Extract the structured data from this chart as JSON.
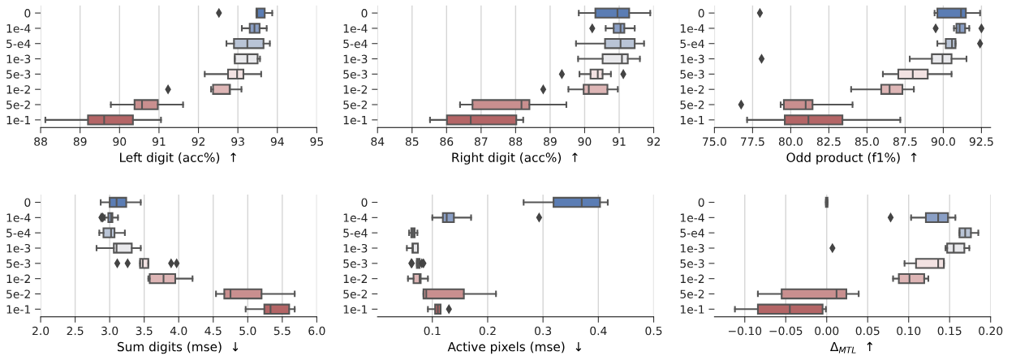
{
  "chart_data": [
    {
      "type": "box",
      "orientation": "horizontal",
      "xlabel": "Left digit (acc%)  ↑",
      "categories": [
        "0",
        "1e-4",
        "5-e4",
        "1e-3",
        "5e-3",
        "1e-2",
        "5e-2",
        "1e-1"
      ],
      "colors": [
        "#5b7db4",
        "#8a9fc5",
        "#b9c4d6",
        "#e9e9ec",
        "#f2e2e2",
        "#deb6b6",
        "#c98f8f",
        "#b46566"
      ],
      "xlim": [
        88,
        95
      ],
      "xticks": [
        88,
        89,
        90,
        91,
        92,
        93,
        94,
        95
      ],
      "grid": "x",
      "boxes": [
        {
          "low": 93.47,
          "q1": 93.47,
          "median": 93.49,
          "q3": 93.68,
          "high": 93.87,
          "outliers": [
            92.52
          ]
        },
        {
          "low": 93.1,
          "q1": 93.3,
          "median": 93.42,
          "q3": 93.55,
          "high": 93.73
        },
        {
          "low": 92.71,
          "q1": 92.9,
          "median": 93.24,
          "q3": 93.65,
          "high": 93.81
        },
        {
          "low": 92.92,
          "q1": 92.92,
          "median": 93.24,
          "q3": 93.5,
          "high": 93.56
        },
        {
          "low": 92.16,
          "q1": 92.75,
          "median": 92.98,
          "q3": 93.14,
          "high": 93.59
        },
        {
          "low": 92.32,
          "q1": 92.37,
          "median": 92.79,
          "q3": 92.8,
          "high": 93.09,
          "outliers": [
            91.23
          ]
        },
        {
          "low": 89.78,
          "q1": 90.38,
          "median": 90.57,
          "q3": 90.97,
          "high": 91.61
        },
        {
          "low": 88.12,
          "q1": 89.2,
          "median": 89.61,
          "q3": 90.34,
          "high": 91.05
        }
      ]
    },
    {
      "type": "box",
      "orientation": "horizontal",
      "xlabel": "Right digit (acc%)  ↑",
      "categories": [
        "0",
        "1e-4",
        "5-e4",
        "1e-3",
        "5e-3",
        "1e-2",
        "5e-2",
        "1e-1"
      ],
      "colors": [
        "#5b7db4",
        "#8a9fc5",
        "#b9c4d6",
        "#e9e9ec",
        "#f2e2e2",
        "#deb6b6",
        "#c98f8f",
        "#b46566"
      ],
      "xlim": [
        84,
        92
      ],
      "xticks": [
        84,
        85,
        86,
        87,
        88,
        89,
        90,
        91,
        92
      ],
      "grid": "x",
      "boxes": [
        {
          "low": 89.83,
          "q1": 90.31,
          "median": 90.95,
          "q3": 91.29,
          "high": 91.9
        },
        {
          "low": 90.61,
          "q1": 90.84,
          "median": 91.04,
          "q3": 91.15,
          "high": 91.45,
          "outliers": [
            90.22
          ]
        },
        {
          "low": 89.75,
          "q1": 90.59,
          "median": 91.04,
          "q3": 91.45,
          "high": 91.72
        },
        {
          "low": 89.81,
          "q1": 90.52,
          "median": 91.08,
          "q3": 91.25,
          "high": 91.6
        },
        {
          "low": 89.85,
          "q1": 90.17,
          "median": 90.38,
          "q3": 90.52,
          "high": 90.76,
          "outliers": [
            89.34,
            91.12
          ]
        },
        {
          "low": 89.53,
          "q1": 89.97,
          "median": 90.12,
          "q3": 90.66,
          "high": 90.96,
          "outliers": [
            88.8
          ]
        },
        {
          "low": 86.39,
          "q1": 86.75,
          "median": 88.17,
          "q3": 88.4,
          "high": 89.47
        },
        {
          "low": 85.52,
          "q1": 86.01,
          "median": 86.7,
          "q3": 88.02,
          "high": 88.22
        }
      ]
    },
    {
      "type": "box",
      "orientation": "horizontal",
      "xlabel": "Odd product (f1%)  ↑",
      "categories": [
        "0",
        "1e-4",
        "5-e4",
        "1e-3",
        "5e-3",
        "1e-2",
        "5e-2",
        "1e-1"
      ],
      "colors": [
        "#5b7db4",
        "#8a9fc5",
        "#b9c4d6",
        "#e9e9ec",
        "#f2e2e2",
        "#deb6b6",
        "#c98f8f",
        "#b46566"
      ],
      "xlim": [
        75,
        93.1
      ],
      "xticks": [
        {
          "value": 75,
          "label": "75.0"
        },
        {
          "value": 77.5,
          "label": "77.5"
        },
        {
          "value": 80,
          "label": "80.0"
        },
        {
          "value": 82.5,
          "label": "82.5"
        },
        {
          "value": 85,
          "label": "85.0"
        },
        {
          "value": 87.5,
          "label": "87.5"
        },
        {
          "value": 90,
          "label": "90.0"
        },
        {
          "value": 92.5,
          "label": "92.5"
        }
      ],
      "grid": "x",
      "boxes": [
        {
          "low": 89.43,
          "q1": 89.61,
          "median": 91.16,
          "q3": 91.48,
          "high": 92.41,
          "outliers": [
            77.98
          ]
        },
        {
          "low": 90.7,
          "q1": 90.86,
          "median": 91.07,
          "q3": 91.43,
          "high": 91.7,
          "outliers": [
            89.5,
            92.5
          ]
        },
        {
          "low": 89.61,
          "q1": 90.16,
          "median": 90.57,
          "q3": 90.8,
          "high": 90.8,
          "outliers": [
            92.41
          ]
        },
        {
          "low": 87.8,
          "q1": 89.25,
          "median": 89.95,
          "q3": 90.54,
          "high": 91.52,
          "outliers": [
            78.09
          ]
        },
        {
          "low": 86.04,
          "q1": 87.05,
          "median": 88.0,
          "q3": 88.98,
          "high": 90.54
        },
        {
          "low": 83.96,
          "q1": 85.93,
          "median": 86.48,
          "q3": 87.32,
          "high": 88.07
        },
        {
          "low": 79.34,
          "q1": 79.55,
          "median": 80.98,
          "q3": 81.43,
          "high": 84.05,
          "outliers": [
            76.75
          ]
        },
        {
          "low": 77.14,
          "q1": 79.61,
          "median": 81.16,
          "q3": 83.39,
          "high": 87.18
        }
      ]
    },
    {
      "type": "box",
      "orientation": "horizontal",
      "xlabel": "Sum digits (mse)  ↓",
      "categories": [
        "0",
        "1e-4",
        "5-e4",
        "1e-3",
        "5e-3",
        "1e-2",
        "5e-2",
        "1e-1"
      ],
      "colors": [
        "#5b7db4",
        "#8a9fc5",
        "#b9c4d6",
        "#e9e9ec",
        "#f2e2e2",
        "#deb6b6",
        "#c98f8f",
        "#b46566"
      ],
      "xlim": [
        2,
        6
      ],
      "xticks": [
        {
          "value": 2,
          "label": "2.0"
        },
        {
          "value": 2.5,
          "label": "2.5"
        },
        {
          "value": 3,
          "label": "3.0"
        },
        {
          "value": 3.5,
          "label": "3.5"
        },
        {
          "value": 4,
          "label": "4.0"
        },
        {
          "value": 4.5,
          "label": "4.5"
        },
        {
          "value": 5,
          "label": "5.0"
        },
        {
          "value": 5.5,
          "label": "5.5"
        },
        {
          "value": 6,
          "label": "6.0"
        }
      ],
      "grid": "x",
      "boxes": [
        {
          "low": 2.87,
          "q1": 3.0,
          "median": 3.1,
          "q3": 3.24,
          "high": 3.45
        },
        {
          "low": 2.93,
          "q1": 2.98,
          "median": 3.02,
          "q3": 3.04,
          "high": 3.12,
          "outliers": [
            2.88,
            2.9
          ]
        },
        {
          "low": 2.85,
          "q1": 2.91,
          "median": 3.02,
          "q3": 3.07,
          "high": 3.22
        },
        {
          "low": 2.81,
          "q1": 3.06,
          "median": 3.1,
          "q3": 3.32,
          "high": 3.45
        },
        {
          "low": 3.44,
          "q1": 3.44,
          "median": 3.48,
          "q3": 3.56,
          "high": 3.56,
          "outliers": [
            3.11,
            3.26,
            3.89,
            3.97
          ]
        },
        {
          "low": 3.56,
          "q1": 3.58,
          "median": 3.78,
          "q3": 3.95,
          "high": 4.2
        },
        {
          "low": 4.54,
          "q1": 4.66,
          "median": 4.75,
          "q3": 5.2,
          "high": 5.68
        },
        {
          "low": 4.97,
          "q1": 5.24,
          "median": 5.33,
          "q3": 5.6,
          "high": 5.68
        }
      ]
    },
    {
      "type": "box",
      "orientation": "horizontal",
      "xlabel": "Active pixels (mse)  ↓",
      "categories": [
        "0",
        "1e-4",
        "5-e4",
        "1e-3",
        "5e-3",
        "1e-2",
        "5e-2",
        "1e-1"
      ],
      "colors": [
        "#5b7db4",
        "#8a9fc5",
        "#b9c4d6",
        "#e9e9ec",
        "#f2e2e2",
        "#deb6b6",
        "#c98f8f",
        "#b46566"
      ],
      "xlim": [
        0.001,
        0.5
      ],
      "xticks": [
        0.1,
        0.2,
        0.3,
        0.4,
        0.5
      ],
      "grid": "x",
      "boxes": [
        {
          "low": 0.265,
          "q1": 0.319,
          "median": 0.37,
          "q3": 0.403,
          "high": 0.417
        },
        {
          "low": 0.1,
          "q1": 0.119,
          "median": 0.126,
          "q3": 0.139,
          "high": 0.17,
          "outliers": [
            0.293
          ]
        },
        {
          "low": 0.058,
          "q1": 0.062,
          "median": 0.065,
          "q3": 0.068,
          "high": 0.073
        },
        {
          "low": 0.054,
          "q1": 0.064,
          "median": 0.065,
          "q3": 0.074,
          "high": 0.074
        },
        {
          "low": 0.072,
          "q1": 0.072,
          "median": 0.074,
          "q3": 0.077,
          "high": 0.079,
          "outliers": [
            0.062,
            0.063,
            0.081,
            0.084
          ]
        },
        {
          "low": 0.056,
          "q1": 0.066,
          "median": 0.077,
          "q3": 0.079,
          "high": 0.092
        },
        {
          "low": 0.084,
          "q1": 0.084,
          "median": 0.089,
          "q3": 0.157,
          "high": 0.215
        },
        {
          "low": 0.092,
          "q1": 0.105,
          "median": 0.11,
          "q3": 0.115,
          "high": 0.115,
          "outliers": [
            0.13
          ]
        }
      ]
    },
    {
      "type": "box",
      "orientation": "horizontal",
      "xlabel": "Δ$_{MTL}$  ↑",
      "categories": [
        "0",
        "1e-4",
        "5-e4",
        "1e-3",
        "5e-3",
        "1e-2",
        "5e-2",
        "1e-1"
      ],
      "colors": [
        "#5b7db4",
        "#8a9fc5",
        "#b9c4d6",
        "#e9e9ec",
        "#f2e2e2",
        "#deb6b6",
        "#c98f8f",
        "#b46566"
      ],
      "xlim": [
        -0.137,
        0.2
      ],
      "xticks": [
        {
          "value": -0.1,
          "label": "−0.10"
        },
        {
          "value": -0.05,
          "label": "−0.05"
        },
        {
          "value": 0,
          "label": "0.00"
        },
        {
          "value": 0.05,
          "label": "0.05"
        },
        {
          "value": 0.1,
          "label": "0.10"
        },
        {
          "value": 0.15,
          "label": "0.15"
        },
        {
          "value": 0.2,
          "label": "0.20"
        }
      ],
      "grid": "x",
      "boxes": [
        {
          "low": -0.001,
          "q1": -0.001,
          "median": 0,
          "q3": 0.001,
          "high": 0.001
        },
        {
          "low": 0.103,
          "q1": 0.121,
          "median": 0.136,
          "q3": 0.148,
          "high": 0.157,
          "outliers": [
            0.078
          ]
        },
        {
          "low": 0.162,
          "q1": 0.162,
          "median": 0.169,
          "q3": 0.176,
          "high": 0.185
        },
        {
          "low": 0.145,
          "q1": 0.147,
          "median": 0.155,
          "q3": 0.168,
          "high": 0.174,
          "outliers": [
            0.007
          ]
        },
        {
          "low": 0.095,
          "q1": 0.109,
          "median": 0.136,
          "q3": 0.143,
          "high": 0.143
        },
        {
          "low": 0.081,
          "q1": 0.088,
          "median": 0.101,
          "q3": 0.119,
          "high": 0.124
        },
        {
          "low": -0.084,
          "q1": -0.055,
          "median": 0.012,
          "q3": 0.024,
          "high": 0.039
        },
        {
          "low": -0.112,
          "q1": -0.084,
          "median": -0.045,
          "q3": -0.005,
          "high": -0.001
        }
      ]
    }
  ]
}
